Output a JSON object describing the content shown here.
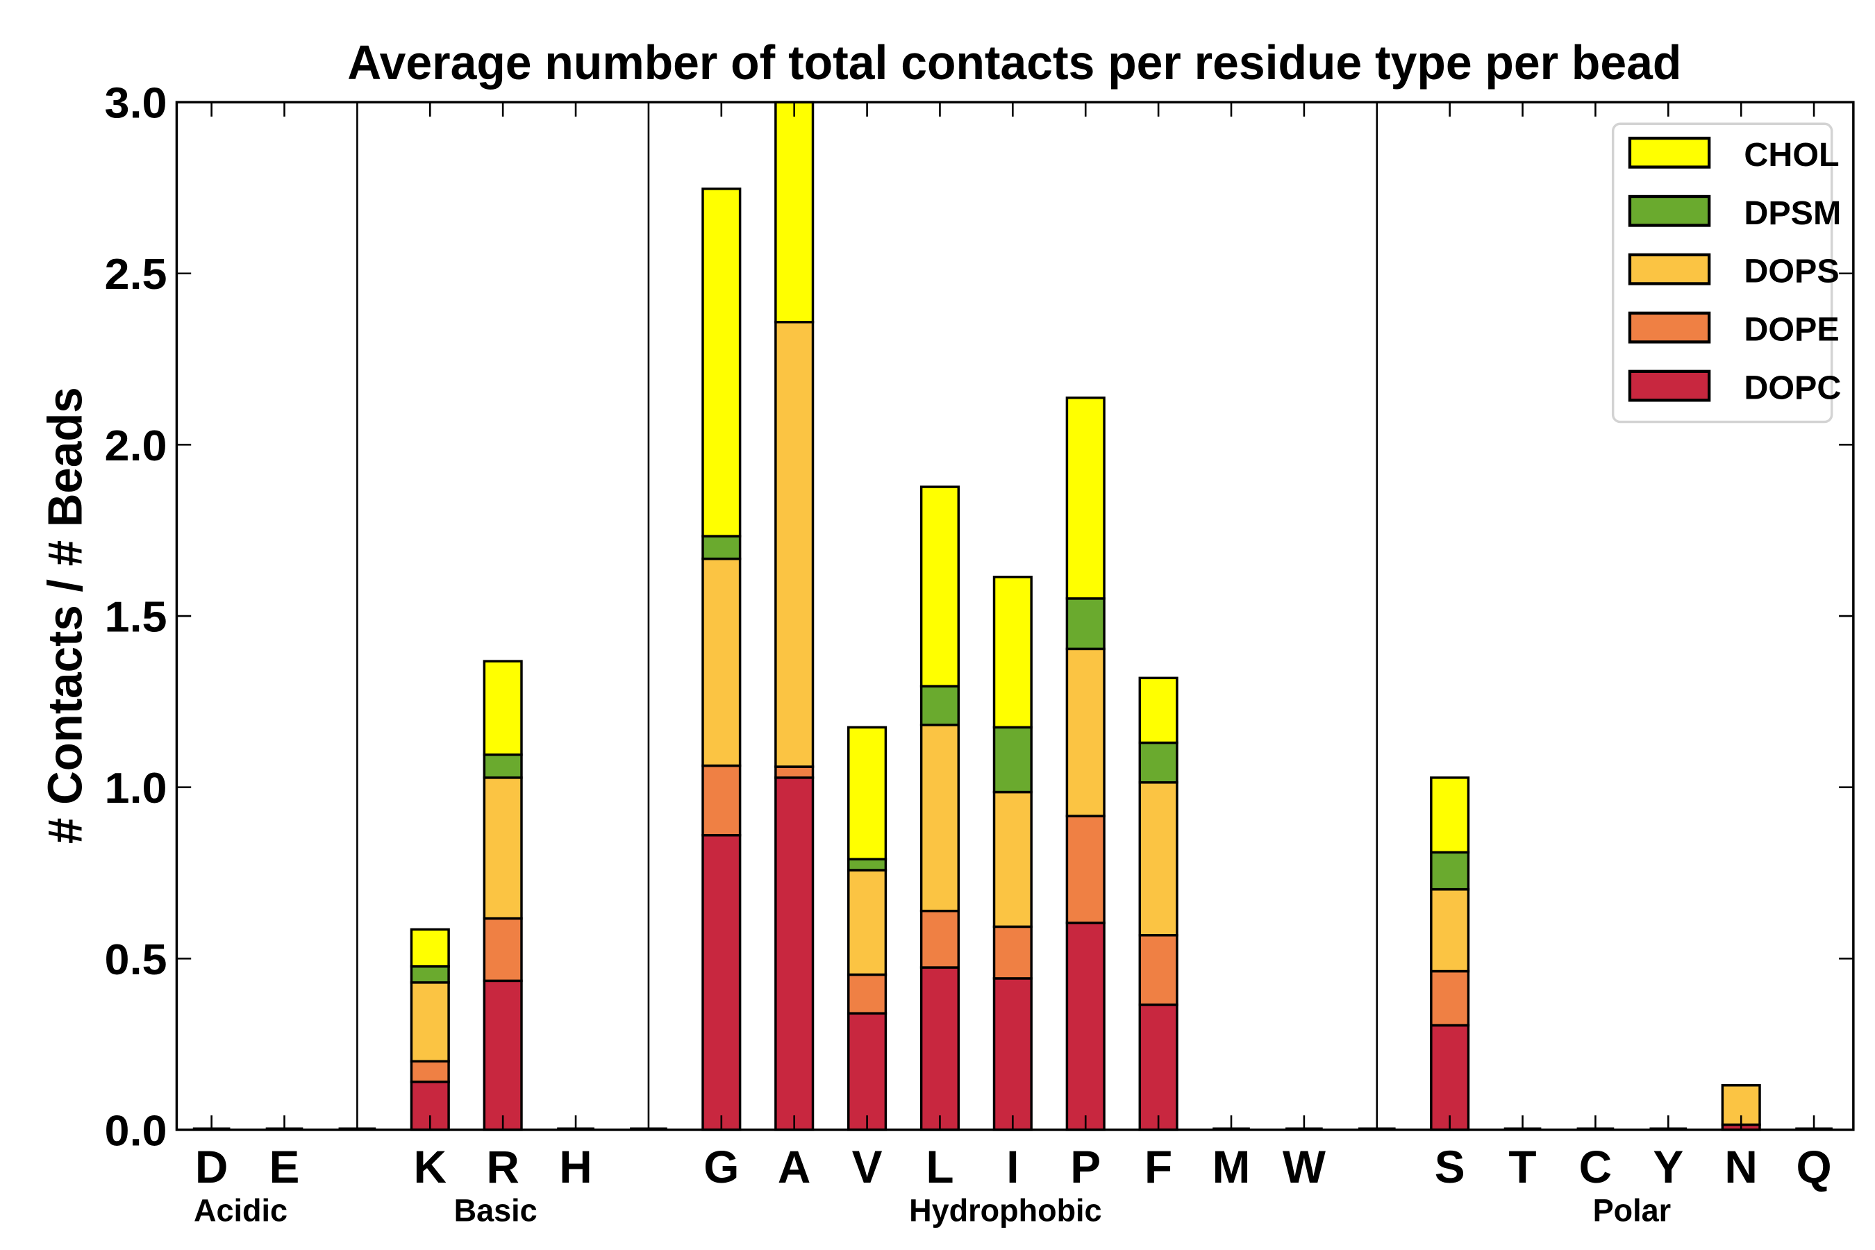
{
  "chart_data": {
    "type": "bar",
    "stacked": true,
    "title": "Average number of total contacts per residue type per bead",
    "xlabel": "",
    "ylabel": "# Contacts / # Beads",
    "ylim": [
      0,
      3.0
    ],
    "yticks": [
      "0.0",
      "0.5",
      "1.0",
      "1.5",
      "2.0",
      "2.5",
      "3.0"
    ],
    "categories": [
      "D",
      "E",
      "",
      "K",
      "R",
      "H",
      "",
      "G",
      "A",
      "V",
      "L",
      "I",
      "P",
      "F",
      "M",
      "W",
      "",
      "S",
      "T",
      "C",
      "Y",
      "N",
      "Q"
    ],
    "groups": [
      {
        "label": "Acidic",
        "center_slot": 0.4
      },
      {
        "label": "Basic",
        "center_slot": 3.9
      },
      {
        "label": "Hydrophobic",
        "center_slot": 10.9
      },
      {
        "label": "Polar",
        "center_slot": 19.5
      }
    ],
    "separators_at_slot": [
      2,
      6,
      16
    ],
    "legend_position": "top-right",
    "series": [
      {
        "name": "DOPC",
        "color": "#c8273f",
        "values": [
          0,
          0,
          0,
          0.14,
          0.435,
          0,
          0,
          0.86,
          1.028,
          0.34,
          0.474,
          0.442,
          0.604,
          0.365,
          0,
          0,
          0,
          0.305,
          0,
          0,
          0,
          0.015,
          0
        ]
      },
      {
        "name": "DOPE",
        "color": "#ef8044",
        "values": [
          0,
          0,
          0,
          0.06,
          0.182,
          0,
          0,
          0.203,
          0.032,
          0.113,
          0.165,
          0.151,
          0.312,
          0.203,
          0,
          0,
          0,
          0.158,
          0,
          0,
          0,
          0,
          0
        ]
      },
      {
        "name": "DOPS",
        "color": "#fbc443",
        "values": [
          0,
          0,
          0,
          0.23,
          0.411,
          0,
          0,
          0.604,
          1.298,
          0.305,
          0.543,
          0.393,
          0.488,
          0.446,
          0,
          0,
          0,
          0.239,
          0,
          0,
          0,
          0.115,
          0
        ]
      },
      {
        "name": "DPSM",
        "color": "#6aaa2e",
        "values": [
          0,
          0,
          0,
          0.047,
          0.067,
          0,
          0,
          0.066,
          0,
          0.032,
          0.113,
          0.189,
          0.147,
          0.116,
          0,
          0,
          0,
          0.108,
          0,
          0,
          0,
          0,
          0
        ]
      },
      {
        "name": "CHOL",
        "color": "#ffff00",
        "values": [
          0,
          0,
          0,
          0.108,
          0.273,
          0,
          0,
          1.014,
          0.642,
          0.385,
          0.582,
          0.439,
          0.586,
          0.189,
          0,
          0,
          0,
          0.218,
          0,
          0,
          0,
          0,
          0
        ]
      }
    ]
  }
}
